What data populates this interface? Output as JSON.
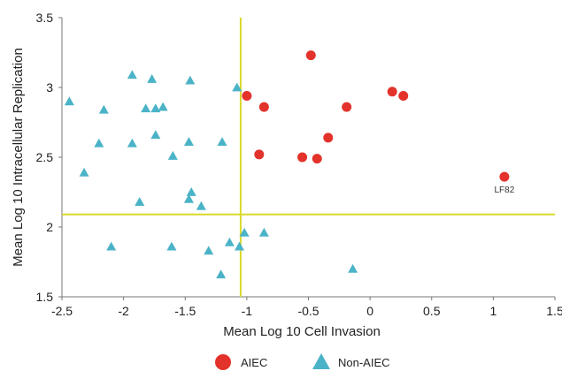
{
  "chart_data": {
    "type": "scatter",
    "title": "",
    "xlabel": "Mean Log 10 Cell Invasion",
    "ylabel": "Mean Log 10 Intracellular Replication",
    "xlim": [
      -2.5,
      1.5
    ],
    "ylim": [
      1.5,
      3.5
    ],
    "xticks": [
      "-2.5",
      "-2",
      "-1.5",
      "-1",
      "-0.5",
      "0",
      "0.5",
      "1",
      "1.5"
    ],
    "yticks": [
      "1.5",
      "2",
      "2.5",
      "3",
      "3.5"
    ],
    "grid": false,
    "legend_position": "bottom",
    "reference_lines": {
      "x": -1.05,
      "y": 2.09,
      "color": "#d9d92b"
    },
    "series": [
      {
        "name": "AIEC",
        "marker": "circle",
        "color": "#e3322b",
        "points": [
          {
            "x": -0.48,
            "y": 3.23
          },
          {
            "x": -1.0,
            "y": 2.94
          },
          {
            "x": -0.86,
            "y": 2.86
          },
          {
            "x": 0.18,
            "y": 2.97
          },
          {
            "x": 0.27,
            "y": 2.94
          },
          {
            "x": -0.19,
            "y": 2.86
          },
          {
            "x": -0.34,
            "y": 2.64
          },
          {
            "x": -0.9,
            "y": 2.52
          },
          {
            "x": -0.55,
            "y": 2.5
          },
          {
            "x": -0.43,
            "y": 2.49
          },
          {
            "x": 1.09,
            "y": 2.36
          }
        ]
      },
      {
        "name": "Non-AIEC",
        "marker": "triangle",
        "color": "#4bb3c7",
        "points": [
          {
            "x": -2.44,
            "y": 2.9
          },
          {
            "x": -1.93,
            "y": 3.09
          },
          {
            "x": -1.77,
            "y": 3.06
          },
          {
            "x": -1.46,
            "y": 3.05
          },
          {
            "x": -1.08,
            "y": 3.0
          },
          {
            "x": -2.16,
            "y": 2.84
          },
          {
            "x": -1.82,
            "y": 2.85
          },
          {
            "x": -1.74,
            "y": 2.85
          },
          {
            "x": -1.68,
            "y": 2.86
          },
          {
            "x": -1.74,
            "y": 2.66
          },
          {
            "x": -2.2,
            "y": 2.6
          },
          {
            "x": -1.93,
            "y": 2.6
          },
          {
            "x": -1.47,
            "y": 2.61
          },
          {
            "x": -1.2,
            "y": 2.61
          },
          {
            "x": -1.6,
            "y": 2.51
          },
          {
            "x": -2.32,
            "y": 2.39
          },
          {
            "x": -1.45,
            "y": 2.25
          },
          {
            "x": -1.47,
            "y": 2.2
          },
          {
            "x": -1.87,
            "y": 2.18
          },
          {
            "x": -1.37,
            "y": 2.15
          },
          {
            "x": -2.1,
            "y": 1.86
          },
          {
            "x": -1.61,
            "y": 1.86
          },
          {
            "x": -1.14,
            "y": 1.89
          },
          {
            "x": -1.06,
            "y": 1.86
          },
          {
            "x": -1.02,
            "y": 1.96
          },
          {
            "x": -0.86,
            "y": 1.96
          },
          {
            "x": -1.31,
            "y": 1.83
          },
          {
            "x": -1.21,
            "y": 1.66
          },
          {
            "x": -0.14,
            "y": 1.7
          }
        ]
      }
    ],
    "annotations": [
      {
        "text": "LF82",
        "x": 1.09,
        "y": 2.36
      }
    ]
  }
}
